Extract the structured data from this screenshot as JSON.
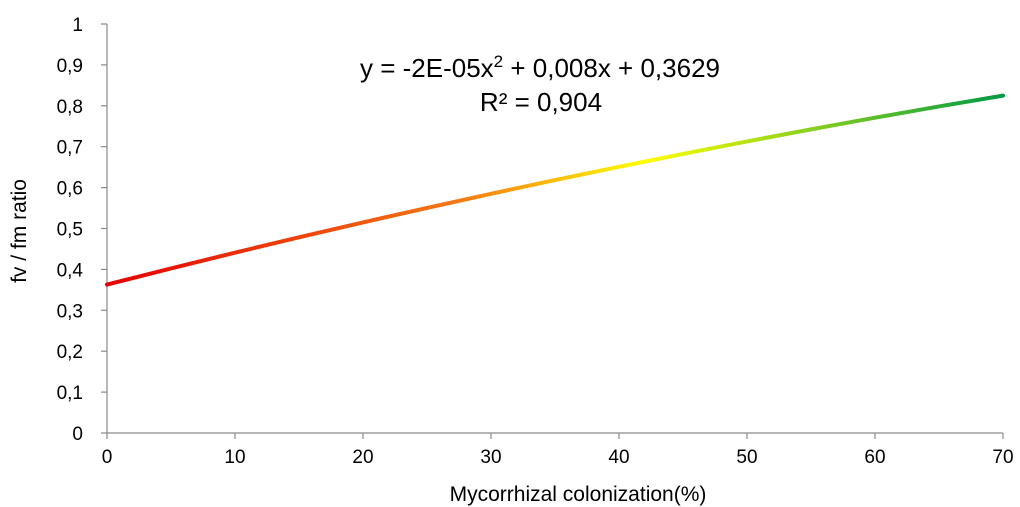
{
  "chart_data": {
    "type": "line",
    "title": "",
    "xlabel": "Mycorrhizal colonization(%)",
    "ylabel": "fv / fm ratio",
    "xlim": [
      0,
      70
    ],
    "ylim": [
      0,
      1
    ],
    "x_ticks": [
      0,
      10,
      20,
      30,
      40,
      50,
      60,
      70
    ],
    "x_tick_labels": [
      "0",
      "10",
      "20",
      "30",
      "40",
      "50",
      "60",
      "70"
    ],
    "y_ticks": [
      0,
      0.1,
      0.2,
      0.3,
      0.4,
      0.5,
      0.6,
      0.7,
      0.8,
      0.9,
      1
    ],
    "y_tick_labels": [
      "0",
      "0,1",
      "0,2",
      "0,3",
      "0,4",
      "0,5",
      "0,6",
      "0,7",
      "0,8",
      "0,9",
      "1"
    ],
    "grid": false,
    "legend": "none",
    "equation": {
      "prefix": "y = -2E-05x",
      "superscript": "2",
      "suffix": " + 0,008x + 0,3629",
      "r_squared": "R² = 0,904"
    },
    "trendline": {
      "a": -2e-05,
      "b": 0.008,
      "c": 0.3629
    },
    "series": [
      {
        "x": [
          0,
          5,
          10,
          15,
          20,
          25,
          30,
          35,
          40,
          45,
          50,
          55,
          60,
          65,
          70
        ],
        "y": [
          0.3629,
          0.4024,
          0.4409,
          0.4784,
          0.5149,
          0.5504,
          0.5849,
          0.6184,
          0.6509,
          0.6824,
          0.7129,
          0.7424,
          0.7709,
          0.7984,
          0.8249
        ]
      }
    ],
    "colors": {
      "gradient_start": "#e60000",
      "gradient_mid1": "#f57c12",
      "gradient_mid2": "#ffff00",
      "gradient_end": "#009a44",
      "axis": "#8a8a8a",
      "text": "#000000"
    }
  }
}
